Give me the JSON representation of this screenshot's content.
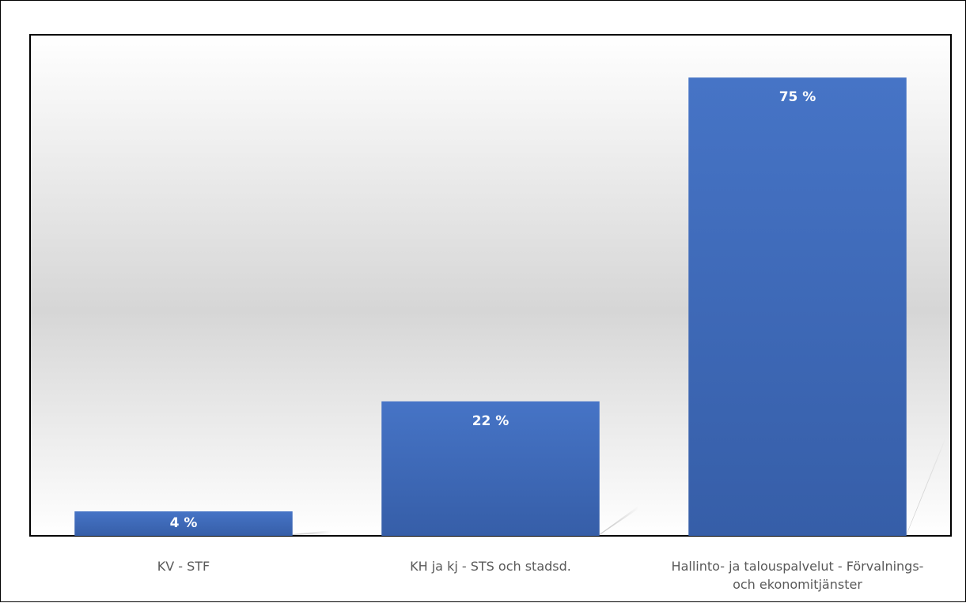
{
  "chart_data": {
    "type": "bar",
    "categories": [
      "KV - STF",
      "KH ja kj - STS och stadsd.",
      "Hallinto- ja talouspalvelut - Förvalnings- och ekonomitjänster"
    ],
    "category_lines": [
      [
        "KV - STF"
      ],
      [
        "KH ja kj - STS och stadsd."
      ],
      [
        "Hallinto- ja talouspalvelut - Förvalnings-",
        "och ekonomitjänster"
      ]
    ],
    "values": [
      4,
      22,
      75
    ],
    "data_labels": [
      "4 %",
      "22 %",
      "75 %"
    ],
    "ylim": [
      0,
      82
    ],
    "grid": false,
    "legend": "none",
    "bar_color": "#4472c4"
  }
}
